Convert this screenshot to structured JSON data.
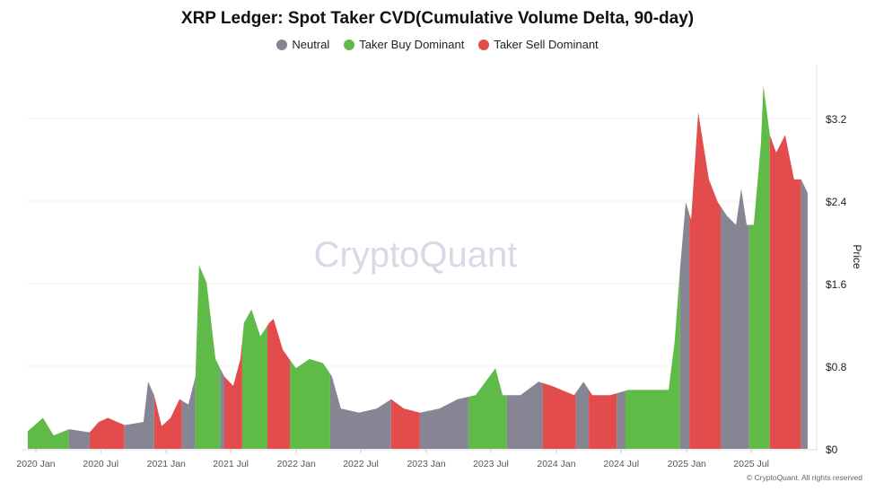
{
  "chart_data": {
    "type": "bar",
    "title": "XRP Ledger: Spot Taker CVD(Cumulative Volume Delta, 90-day)",
    "ylabel": "Price",
    "y_axis_side": "right",
    "ylim": [
      0,
      3.7
    ],
    "yticks": [
      0,
      0.8,
      1.6,
      2.4,
      3.2
    ],
    "ytick_labels": [
      "$0",
      "$0.8",
      "$1.6",
      "$2.4",
      "$3.2"
    ],
    "xtick_labels": [
      "2020 Jan",
      "2020 Jul",
      "2021 Jan",
      "2021 Jul",
      "2022 Jan",
      "2022 Jul",
      "2023 Jan",
      "2023 Jul",
      "2024 Jan",
      "2024 Jul",
      "2025 Jan",
      "2025 Jul"
    ],
    "xtick_dates": [
      "2020-01-01",
      "2020-07-01",
      "2021-01-01",
      "2021-07-01",
      "2022-01-01",
      "2022-07-01",
      "2023-01-01",
      "2023-07-01",
      "2024-01-01",
      "2024-07-01",
      "2025-01-01",
      "2025-07-01"
    ],
    "grid": true,
    "legend_placement": "top-center",
    "legend": [
      {
        "name": "Neutral",
        "color": "#868593"
      },
      {
        "name": "Taker Buy Dominant",
        "color": "#5fba47"
      },
      {
        "name": "Taker Sell Dominant",
        "color": "#e24c4c"
      }
    ],
    "price": [
      [
        "2019-12-09",
        0.17
      ],
      [
        "2020-01-21",
        0.3
      ],
      [
        "2020-02-20",
        0.13
      ],
      [
        "2020-04-03",
        0.19
      ],
      [
        "2020-05-31",
        0.16
      ],
      [
        "2020-06-25",
        0.26
      ],
      [
        "2020-07-21",
        0.3
      ],
      [
        "2020-09-06",
        0.23
      ],
      [
        "2020-10-29",
        0.26
      ],
      [
        "2020-11-11",
        0.65
      ],
      [
        "2020-11-28",
        0.52
      ],
      [
        "2020-12-19",
        0.22
      ],
      [
        "2021-01-13",
        0.3
      ],
      [
        "2021-02-07",
        0.48
      ],
      [
        "2021-03-04",
        0.43
      ],
      [
        "2021-03-24",
        0.7
      ],
      [
        "2021-04-03",
        1.78
      ],
      [
        "2021-04-24",
        1.61
      ],
      [
        "2021-05-19",
        0.87
      ],
      [
        "2021-06-13",
        0.7
      ],
      [
        "2021-07-08",
        0.61
      ],
      [
        "2021-07-28",
        0.87
      ],
      [
        "2021-08-07",
        1.22
      ],
      [
        "2021-08-28",
        1.35
      ],
      [
        "2021-09-22",
        1.09
      ],
      [
        "2021-10-17",
        1.22
      ],
      [
        "2021-10-29",
        1.26
      ],
      [
        "2021-11-24",
        0.96
      ],
      [
        "2021-12-31",
        0.78
      ],
      [
        "2022-02-07",
        0.87
      ],
      [
        "2022-03-17",
        0.83
      ],
      [
        "2022-04-11",
        0.7
      ],
      [
        "2022-05-06",
        0.39
      ],
      [
        "2022-06-26",
        0.35
      ],
      [
        "2022-08-15",
        0.39
      ],
      [
        "2022-09-24",
        0.48
      ],
      [
        "2022-10-30",
        0.39
      ],
      [
        "2022-12-14",
        0.35
      ],
      [
        "2023-02-07",
        0.39
      ],
      [
        "2023-03-30",
        0.48
      ],
      [
        "2023-05-19",
        0.52
      ],
      [
        "2023-07-14",
        0.78
      ],
      [
        "2023-08-03",
        0.52
      ],
      [
        "2023-09-22",
        0.52
      ],
      [
        "2023-11-12",
        0.65
      ],
      [
        "2023-12-19",
        0.61
      ],
      [
        "2024-02-20",
        0.52
      ],
      [
        "2024-03-17",
        0.65
      ],
      [
        "2024-04-11",
        0.52
      ],
      [
        "2024-05-31",
        0.52
      ],
      [
        "2024-07-20",
        0.57
      ],
      [
        "2024-09-09",
        0.57
      ],
      [
        "2024-11-11",
        0.57
      ],
      [
        "2024-11-28",
        1.04
      ],
      [
        "2024-12-13",
        1.74
      ],
      [
        "2024-12-29",
        2.39
      ],
      [
        "2025-01-13",
        2.22
      ],
      [
        "2025-02-02",
        3.26
      ],
      [
        "2025-03-04",
        2.61
      ],
      [
        "2025-03-29",
        2.39
      ],
      [
        "2025-04-23",
        2.26
      ],
      [
        "2025-05-19",
        2.17
      ],
      [
        "2025-06-03",
        2.52
      ],
      [
        "2025-06-18",
        2.17
      ],
      [
        "2025-07-08",
        2.17
      ],
      [
        "2025-07-28",
        2.96
      ],
      [
        "2025-08-04",
        3.52
      ],
      [
        "2025-08-22",
        3.04
      ],
      [
        "2025-09-09",
        2.87
      ],
      [
        "2025-10-04",
        3.04
      ],
      [
        "2025-10-29",
        2.61
      ],
      [
        "2025-11-18",
        2.61
      ],
      [
        "2025-12-06",
        2.48
      ]
    ],
    "regimes": [
      [
        "2019-12-09",
        "2020-04-03",
        "buy"
      ],
      [
        "2020-04-03",
        "2020-05-31",
        "neutral"
      ],
      [
        "2020-05-31",
        "2020-09-06",
        "sell"
      ],
      [
        "2020-09-06",
        "2020-11-28",
        "neutral"
      ],
      [
        "2020-11-28",
        "2021-02-14",
        "sell"
      ],
      [
        "2021-02-14",
        "2021-03-24",
        "neutral"
      ],
      [
        "2021-03-24",
        "2021-06-01",
        "buy"
      ],
      [
        "2021-06-01",
        "2021-06-13",
        "neutral"
      ],
      [
        "2021-06-13",
        "2021-08-02",
        "sell"
      ],
      [
        "2021-08-02",
        "2021-10-12",
        "buy"
      ],
      [
        "2021-10-12",
        "2021-12-14",
        "sell"
      ],
      [
        "2021-12-14",
        "2022-04-06",
        "buy"
      ],
      [
        "2022-04-06",
        "2022-09-24",
        "neutral"
      ],
      [
        "2022-09-24",
        "2022-12-14",
        "sell"
      ],
      [
        "2022-12-14",
        "2023-04-29",
        "neutral"
      ],
      [
        "2023-04-29",
        "2023-08-15",
        "buy"
      ],
      [
        "2023-08-15",
        "2023-11-24",
        "neutral"
      ],
      [
        "2023-11-24",
        "2024-02-25",
        "sell"
      ],
      [
        "2024-02-25",
        "2024-04-01",
        "neutral"
      ],
      [
        "2024-04-01",
        "2024-06-18",
        "sell"
      ],
      [
        "2024-06-18",
        "2024-07-13",
        "neutral"
      ],
      [
        "2024-07-13",
        "2024-12-13",
        "buy"
      ],
      [
        "2024-12-13",
        "2025-01-08",
        "neutral"
      ],
      [
        "2025-01-08",
        "2025-04-06",
        "sell"
      ],
      [
        "2025-04-06",
        "2025-06-25",
        "neutral"
      ],
      [
        "2025-06-25",
        "2025-08-22",
        "buy"
      ],
      [
        "2025-08-22",
        "2025-11-18",
        "sell"
      ],
      [
        "2025-11-18",
        "2025-12-06",
        "neutral"
      ]
    ]
  },
  "watermark": "CryptoQuant",
  "copyright": "© CryptoQuant. All rights reserved"
}
